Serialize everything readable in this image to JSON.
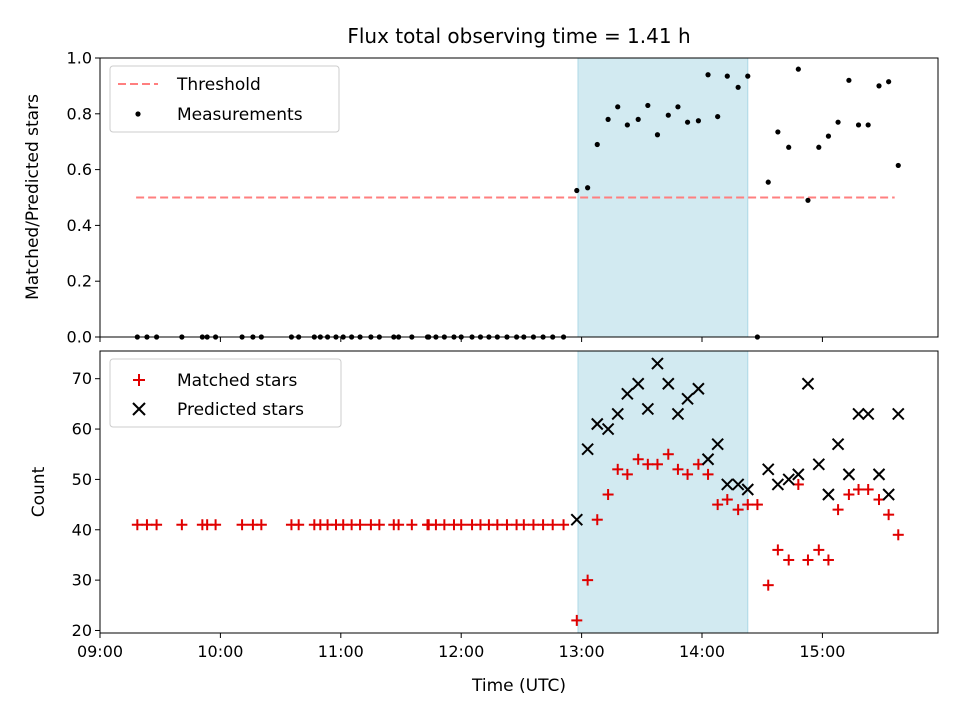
{
  "chart_data": {
    "type": "scatter",
    "title": "Flux total observing time = 1.41 h",
    "xlabel": "Time (UTC)",
    "xlim": [
      9.0,
      15.96
    ],
    "xticks": [
      {
        "value": 9,
        "label": "09:00"
      },
      {
        "value": 10,
        "label": "10:00"
      },
      {
        "value": 11,
        "label": "11:00"
      },
      {
        "value": 12,
        "label": "12:00"
      },
      {
        "value": 13,
        "label": "13:00"
      },
      {
        "value": 14,
        "label": "14:00"
      },
      {
        "value": 15,
        "label": "15:00"
      }
    ],
    "shaded_span": [
      12.97,
      14.38
    ],
    "colors": {
      "threshold": "#ff7f7f",
      "measurements": "#000000",
      "matched": "#e00000",
      "predicted": "#000000",
      "span": "#add8e6"
    },
    "panels": [
      {
        "ylabel": "Matched/Predicted stars",
        "ylim": [
          0,
          1.0
        ],
        "yticks": [
          {
            "value": 0.0,
            "label": "0.0"
          },
          {
            "value": 0.2,
            "label": "0.2"
          },
          {
            "value": 0.4,
            "label": "0.4"
          },
          {
            "value": 0.6,
            "label": "0.6"
          },
          {
            "value": 0.8,
            "label": "0.8"
          },
          {
            "value": 1.0,
            "label": "1.0"
          }
        ],
        "legend": {
          "position": "upper-left",
          "entries": [
            "Threshold",
            "Measurements"
          ]
        },
        "threshold": {
          "name": "Threshold",
          "y": 0.5,
          "x": [
            9.3,
            15.6
          ]
        },
        "measurements": {
          "name": "Measurements",
          "x": [
            9.31,
            9.39,
            9.47,
            9.68,
            9.85,
            9.89,
            9.96,
            10.18,
            10.27,
            10.34,
            10.59,
            10.65,
            10.78,
            10.83,
            10.89,
            10.96,
            11.02,
            11.09,
            11.16,
            11.25,
            11.32,
            11.44,
            11.48,
            11.59,
            11.72,
            11.73,
            11.79,
            11.86,
            11.94,
            12.0,
            12.09,
            12.16,
            12.23,
            12.3,
            12.38,
            12.46,
            12.52,
            12.6,
            12.68,
            12.76,
            12.85,
            12.96,
            13.05,
            13.13,
            13.22,
            13.3,
            13.38,
            13.47,
            13.55,
            13.63,
            13.72,
            13.8,
            13.88,
            13.97,
            14.05,
            14.13,
            14.21,
            14.3,
            14.38,
            14.46,
            14.55,
            14.63,
            14.72,
            14.8,
            14.88,
            14.97,
            15.05,
            15.13,
            15.22,
            15.3,
            15.38,
            15.47,
            15.55,
            15.63
          ],
          "y": [
            0,
            0,
            0,
            0,
            0,
            0,
            0,
            0,
            0,
            0,
            0,
            0,
            0,
            0,
            0,
            0,
            0,
            0,
            0,
            0,
            0,
            0,
            0,
            0,
            0,
            0,
            0,
            0,
            0,
            0,
            0,
            0,
            0,
            0,
            0,
            0,
            0,
            0,
            0,
            0,
            0,
            0.525,
            0.535,
            0.69,
            0.78,
            0.825,
            0.76,
            0.78,
            0.83,
            0.725,
            0.795,
            0.825,
            0.77,
            0.775,
            0.94,
            0.79,
            0.935,
            0.895,
            0.935,
            0,
            0.555,
            0.735,
            0.68,
            0.96,
            0.49,
            0.68,
            0.72,
            0.77,
            0.92,
            0.76,
            0.76,
            0.9,
            0.915,
            0.615
          ]
        }
      },
      {
        "ylabel": "Count",
        "ylim": [
          19.5,
          75.5
        ],
        "yticks": [
          {
            "value": 20,
            "label": "20"
          },
          {
            "value": 30,
            "label": "30"
          },
          {
            "value": 40,
            "label": "40"
          },
          {
            "value": 50,
            "label": "50"
          },
          {
            "value": 60,
            "label": "60"
          },
          {
            "value": 70,
            "label": "70"
          }
        ],
        "legend": {
          "position": "upper-left",
          "entries": [
            "Matched stars",
            "Predicted stars"
          ]
        },
        "series": [
          {
            "name": "Matched stars",
            "marker": "plus",
            "x": [
              9.31,
              9.39,
              9.47,
              9.68,
              9.85,
              9.89,
              9.96,
              10.18,
              10.27,
              10.34,
              10.59,
              10.65,
              10.78,
              10.83,
              10.89,
              10.96,
              11.02,
              11.09,
              11.16,
              11.25,
              11.32,
              11.44,
              11.48,
              11.59,
              11.72,
              11.73,
              11.79,
              11.86,
              11.94,
              12.0,
              12.09,
              12.16,
              12.23,
              12.3,
              12.38,
              12.46,
              12.52,
              12.6,
              12.68,
              12.76,
              12.85,
              12.96,
              13.05,
              13.13,
              13.22,
              13.3,
              13.38,
              13.47,
              13.55,
              13.63,
              13.72,
              13.8,
              13.88,
              13.97,
              14.05,
              14.13,
              14.21,
              14.3,
              14.38,
              14.46,
              14.55,
              14.63,
              14.72,
              14.8,
              14.88,
              14.97,
              15.05,
              15.13,
              15.22,
              15.3,
              15.38,
              15.47,
              15.55,
              15.63
            ],
            "y": [
              41,
              41,
              41,
              41,
              41,
              41,
              41,
              41,
              41,
              41,
              41,
              41,
              41,
              41,
              41,
              41,
              41,
              41,
              41,
              41,
              41,
              41,
              41,
              41,
              41,
              41,
              41,
              41,
              41,
              41,
              41,
              41,
              41,
              41,
              41,
              41,
              41,
              41,
              41,
              41,
              41,
              22,
              30,
              42,
              47,
              52,
              51,
              54,
              53,
              53,
              55,
              52,
              51,
              53,
              51,
              45,
              46,
              44,
              45,
              45,
              29,
              36,
              34,
              49,
              34,
              36,
              34,
              44,
              47,
              48,
              48,
              46,
              43,
              39
            ]
          },
          {
            "name": "Predicted stars",
            "marker": "x",
            "x": [
              12.96,
              13.05,
              13.13,
              13.22,
              13.3,
              13.38,
              13.47,
              13.55,
              13.63,
              13.72,
              13.8,
              13.88,
              13.97,
              14.05,
              14.13,
              14.21,
              14.3,
              14.38,
              14.55,
              14.63,
              14.72,
              14.8,
              14.88,
              14.97,
              15.05,
              15.13,
              15.22,
              15.3,
              15.38,
              15.47,
              15.55,
              15.63
            ],
            "y": [
              42,
              56,
              61,
              60,
              63,
              67,
              69,
              64,
              73,
              69,
              63,
              66,
              68,
              54,
              57,
              49,
              49,
              48,
              52,
              49,
              50,
              51,
              69,
              53,
              47,
              57,
              51,
              63,
              63,
              51,
              47,
              63
            ]
          }
        ]
      }
    ]
  }
}
